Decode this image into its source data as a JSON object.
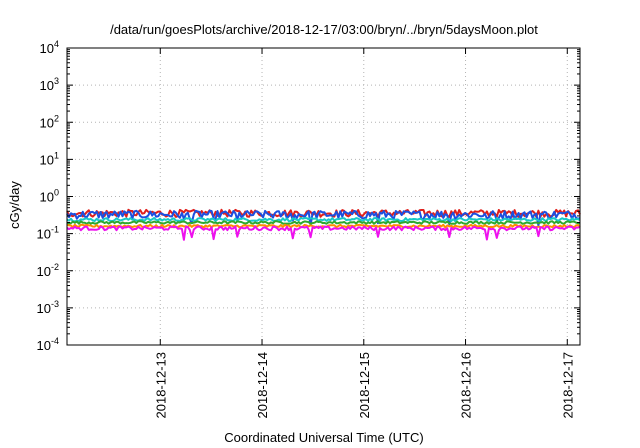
{
  "chart_data": {
    "type": "line",
    "title": "/data/run/goesPlots/archive/2018-12-17/03:00/bryn/../bryn/5daysMoon.plot",
    "xlabel": "Coordinated Universal Time (UTC)",
    "ylabel": "cGy/day",
    "yscale": "log",
    "ylim": [
      0.0001,
      10000
    ],
    "xlim": [
      "2018-12-12 02:00",
      "2018-12-17 03:00"
    ],
    "grid": true,
    "y_ticks": [
      {
        "base": "10",
        "exp": "-4"
      },
      {
        "base": "10",
        "exp": "-3"
      },
      {
        "base": "10",
        "exp": "-2"
      },
      {
        "base": "10",
        "exp": "-1"
      },
      {
        "base": "10",
        "exp": "0"
      },
      {
        "base": "10",
        "exp": "1"
      },
      {
        "base": "10",
        "exp": "2"
      },
      {
        "base": "10",
        "exp": "3"
      },
      {
        "base": "10",
        "exp": "4"
      }
    ],
    "x_ticks": [
      "2018-12-13",
      "2018-12-14",
      "2018-12-15",
      "2018-12-16",
      "2018-12-17"
    ],
    "series": [
      {
        "color": "#e0201c",
        "level": 0.36,
        "jitter": 0.22,
        "dips": false
      },
      {
        "color": "#1c4fe0",
        "level": 0.33,
        "jitter": 0.25,
        "dips": true
      },
      {
        "color": "#18c8c8",
        "level": 0.24,
        "jitter": 0.1,
        "dips": false
      },
      {
        "color": "#2ea82e",
        "level": 0.2,
        "jitter": 0.08,
        "dips": false
      },
      {
        "color": "#ff8c00",
        "level": 0.16,
        "jitter": 0.08,
        "dips": false
      },
      {
        "color": "#ee10ee",
        "level": 0.14,
        "jitter": 0.12,
        "dips": true
      }
    ]
  }
}
